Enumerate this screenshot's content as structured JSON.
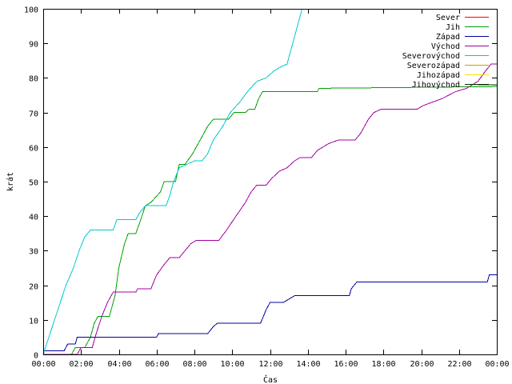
{
  "chart_data": {
    "type": "line",
    "title": "",
    "xlabel": "Čas",
    "ylabel": "krát",
    "xlim": [
      0,
      24
    ],
    "ylim": [
      0,
      100
    ],
    "x_ticks": [
      {
        "value": 0,
        "label": "00:00"
      },
      {
        "value": 2,
        "label": "02:00"
      },
      {
        "value": 4,
        "label": "04:00"
      },
      {
        "value": 6,
        "label": "06:00"
      },
      {
        "value": 8,
        "label": "08:00"
      },
      {
        "value": 10,
        "label": "10:00"
      },
      {
        "value": 12,
        "label": "12:00"
      },
      {
        "value": 14,
        "label": "14:00"
      },
      {
        "value": 16,
        "label": "16:00"
      },
      {
        "value": 18,
        "label": "18:00"
      },
      {
        "value": 20,
        "label": "20:00"
      },
      {
        "value": 22,
        "label": "22:00"
      },
      {
        "value": 24,
        "label": "00:00"
      }
    ],
    "y_ticks": [
      0,
      10,
      20,
      30,
      40,
      50,
      60,
      70,
      80,
      90,
      100
    ],
    "grid": false,
    "legend_position": "top-right",
    "series": [
      {
        "name": "Sever",
        "color": "#ff0000",
        "points": []
      },
      {
        "name": "Jih",
        "color": "#00a000",
        "points": [
          [
            1.5,
            0
          ],
          [
            1.7,
            2
          ],
          [
            2.2,
            2
          ],
          [
            2.5,
            5
          ],
          [
            2.7,
            9
          ],
          [
            2.9,
            11
          ],
          [
            3.5,
            11
          ],
          [
            3.8,
            17
          ],
          [
            4.0,
            25
          ],
          [
            4.3,
            32
          ],
          [
            4.5,
            35
          ],
          [
            4.9,
            35
          ],
          [
            5.1,
            38
          ],
          [
            5.4,
            43
          ],
          [
            5.7,
            44
          ],
          [
            6.2,
            47
          ],
          [
            6.4,
            50
          ],
          [
            7.0,
            50
          ],
          [
            7.2,
            55
          ],
          [
            7.5,
            55
          ],
          [
            7.9,
            58
          ],
          [
            8.3,
            62
          ],
          [
            8.7,
            66
          ],
          [
            9.0,
            68
          ],
          [
            9.8,
            68
          ],
          [
            10.1,
            70
          ],
          [
            10.7,
            70
          ],
          [
            10.9,
            71
          ],
          [
            11.2,
            71
          ],
          [
            11.4,
            74
          ],
          [
            11.6,
            76
          ],
          [
            14.5,
            76
          ],
          [
            14.6,
            77
          ],
          [
            24,
            77.5
          ]
        ]
      },
      {
        "name": "Západ",
        "color": "#0000a0",
        "points": [
          [
            0,
            1
          ],
          [
            1.1,
            1
          ],
          [
            1.3,
            3
          ],
          [
            1.7,
            3
          ],
          [
            1.8,
            5
          ],
          [
            6.0,
            5
          ],
          [
            6.1,
            6
          ],
          [
            8.7,
            6
          ],
          [
            9.0,
            8
          ],
          [
            9.2,
            9
          ],
          [
            11.5,
            9
          ],
          [
            11.8,
            13
          ],
          [
            12.0,
            15
          ],
          [
            12.7,
            15
          ],
          [
            13.0,
            16
          ],
          [
            13.3,
            17
          ],
          [
            16.2,
            17
          ],
          [
            16.3,
            19
          ],
          [
            16.6,
            21
          ],
          [
            23.5,
            21
          ],
          [
            23.6,
            23
          ],
          [
            24,
            23
          ]
        ]
      },
      {
        "name": "Východ",
        "color": "#a000a0",
        "points": [
          [
            0,
            0
          ],
          [
            1.8,
            0
          ],
          [
            2.0,
            2
          ],
          [
            2.6,
            2
          ],
          [
            2.8,
            6
          ],
          [
            3.1,
            11
          ],
          [
            3.4,
            15
          ],
          [
            3.7,
            18
          ],
          [
            4.9,
            18
          ],
          [
            5.0,
            19
          ],
          [
            5.7,
            19
          ],
          [
            6.0,
            23
          ],
          [
            6.4,
            26
          ],
          [
            6.7,
            28
          ],
          [
            7.2,
            28
          ],
          [
            7.5,
            30
          ],
          [
            7.8,
            32
          ],
          [
            8.1,
            33
          ],
          [
            9.3,
            33
          ],
          [
            9.7,
            36
          ],
          [
            10.2,
            40
          ],
          [
            10.7,
            44
          ],
          [
            11.0,
            47
          ],
          [
            11.3,
            49
          ],
          [
            11.8,
            49
          ],
          [
            12.1,
            51
          ],
          [
            12.5,
            53
          ],
          [
            12.9,
            54
          ],
          [
            13.3,
            56
          ],
          [
            13.6,
            57
          ],
          [
            14.2,
            57
          ],
          [
            14.5,
            59
          ],
          [
            14.8,
            60
          ],
          [
            15.1,
            61
          ],
          [
            15.6,
            62
          ],
          [
            16.5,
            62
          ],
          [
            16.8,
            64
          ],
          [
            17.2,
            68
          ],
          [
            17.5,
            70
          ],
          [
            17.9,
            71
          ],
          [
            19.8,
            71
          ],
          [
            20.1,
            72
          ],
          [
            20.6,
            73
          ],
          [
            21.1,
            74
          ],
          [
            21.8,
            76
          ],
          [
            22.4,
            77
          ],
          [
            23.0,
            79
          ],
          [
            23.4,
            82
          ],
          [
            23.7,
            84
          ],
          [
            24,
            84
          ]
        ]
      },
      {
        "name": "Severovýchod",
        "color": "#00c8c8",
        "points": [
          [
            0,
            0
          ],
          [
            0.3,
            5
          ],
          [
            0.6,
            10
          ],
          [
            0.9,
            15
          ],
          [
            1.2,
            20
          ],
          [
            1.6,
            25
          ],
          [
            1.9,
            30
          ],
          [
            2.2,
            34
          ],
          [
            2.5,
            36
          ],
          [
            3.7,
            36
          ],
          [
            3.9,
            39
          ],
          [
            4.9,
            39
          ],
          [
            5.1,
            41
          ],
          [
            5.4,
            43
          ],
          [
            6.5,
            43
          ],
          [
            6.7,
            46
          ],
          [
            6.9,
            50
          ],
          [
            7.2,
            54
          ],
          [
            7.6,
            55
          ],
          [
            8.0,
            56
          ],
          [
            8.4,
            56
          ],
          [
            8.7,
            58
          ],
          [
            9.0,
            62
          ],
          [
            9.5,
            66
          ],
          [
            9.9,
            70
          ],
          [
            10.4,
            73
          ],
          [
            10.8,
            76
          ],
          [
            11.3,
            79
          ],
          [
            11.8,
            80
          ],
          [
            12.2,
            82
          ],
          [
            12.5,
            83
          ],
          [
            12.9,
            84
          ],
          [
            13.1,
            88
          ],
          [
            13.3,
            92
          ],
          [
            13.5,
            96
          ],
          [
            13.7,
            100
          ]
        ]
      },
      {
        "name": "Severozápad",
        "color": "#c8a000",
        "points": []
      },
      {
        "name": "Jihozápad",
        "color": "#ffe000",
        "points": []
      },
      {
        "name": "Jihovýchod",
        "color": "#003000",
        "points": [
          [
            23.0,
            78
          ],
          [
            24,
            78
          ]
        ]
      }
    ]
  }
}
